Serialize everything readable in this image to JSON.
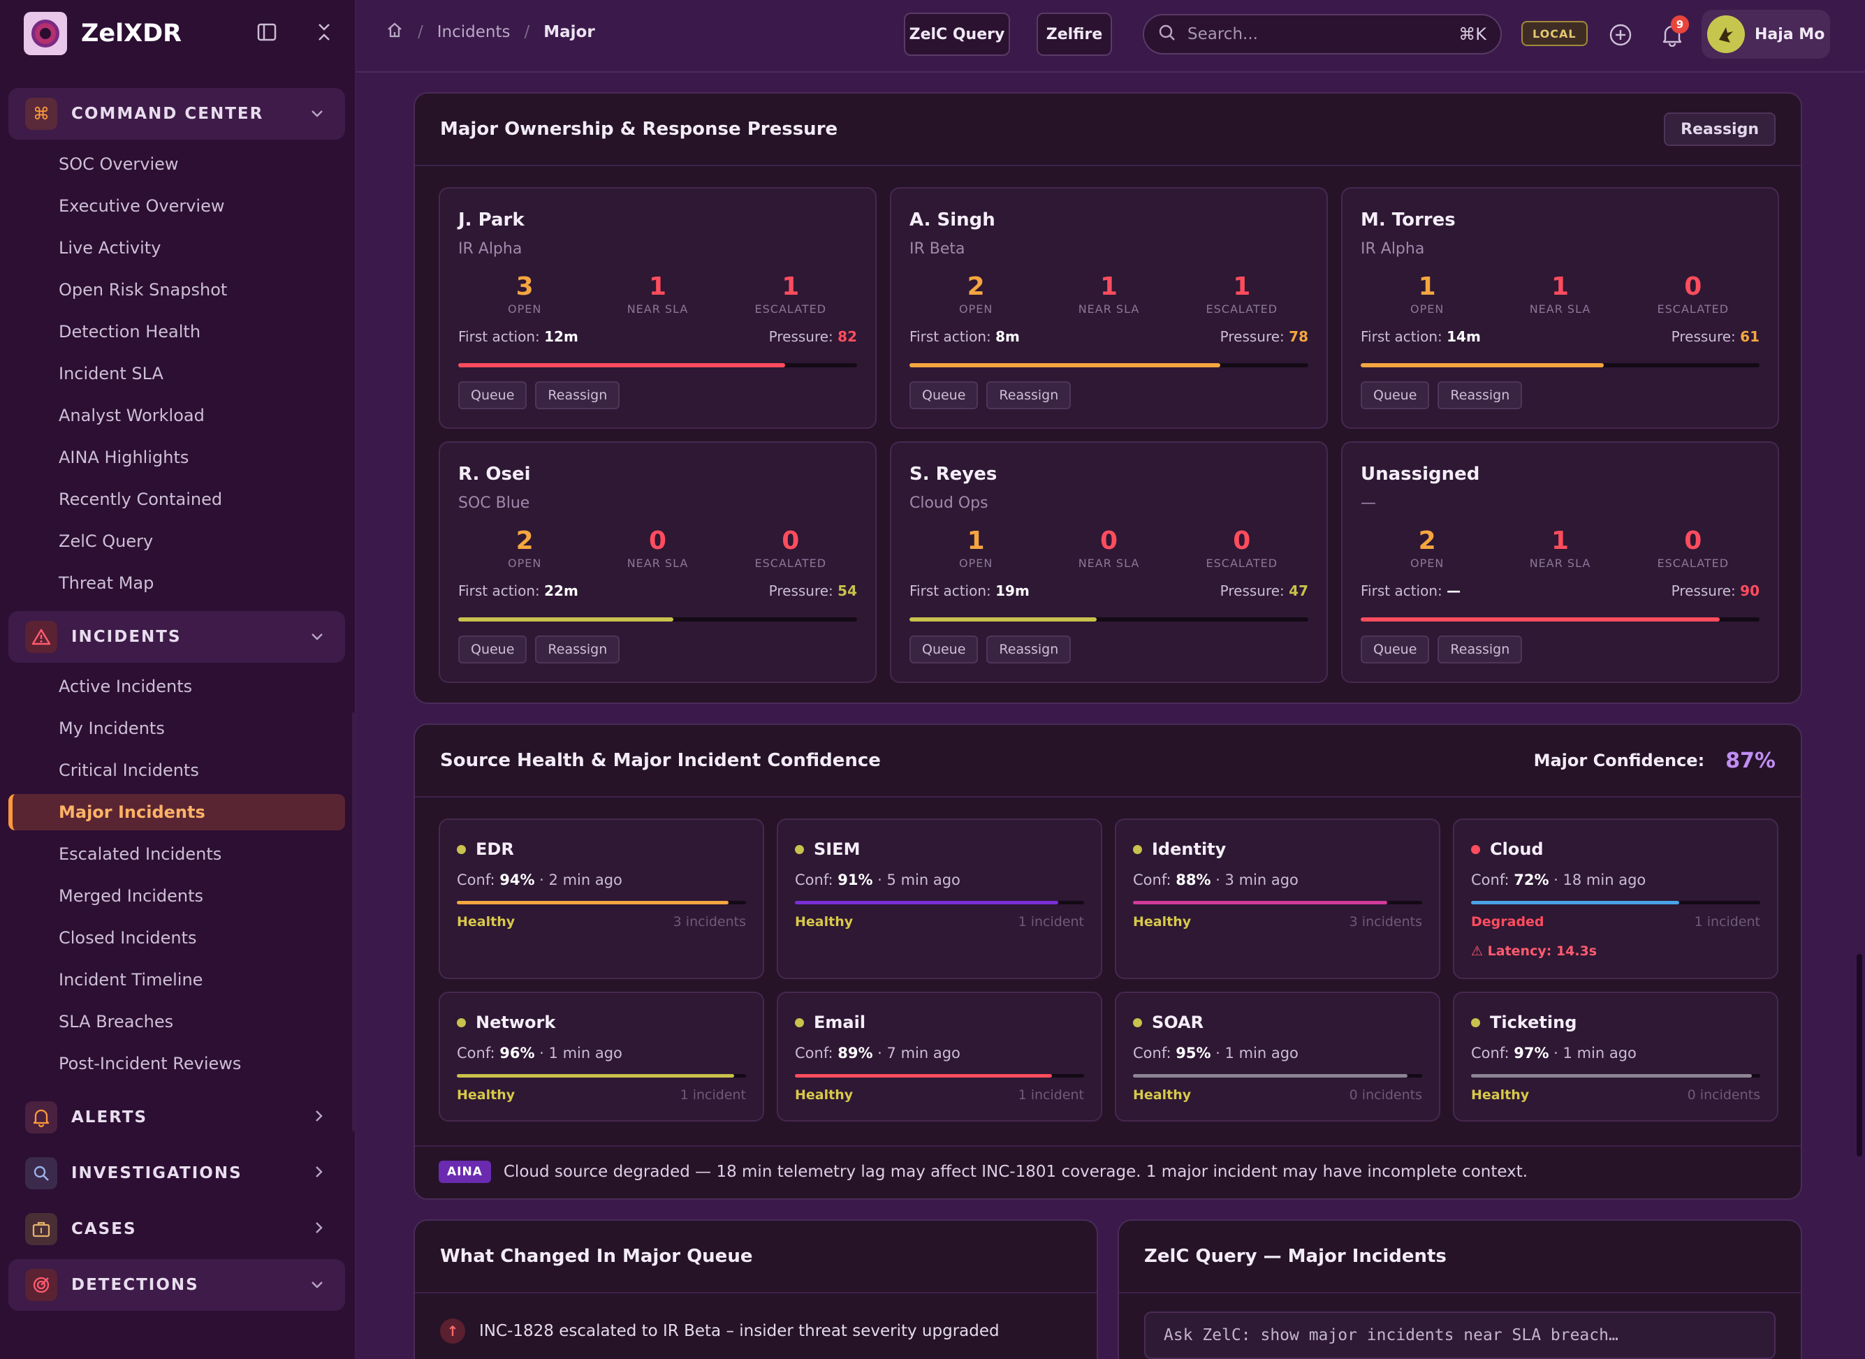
{
  "brand": {
    "name": "ZelXDR"
  },
  "colors": {
    "orange": "#ff9a3c",
    "red": "#ff4d5e",
    "amber": "#f5a640",
    "yellow": "#c9c24c",
    "purple": "#7b2fd6",
    "magenta": "#d23a9a",
    "blue": "#4aa3e6",
    "gray": "#8e8594"
  },
  "sidebar": {
    "sections": [
      {
        "label": "COMMAND CENTER",
        "icon": "command-icon",
        "open": true,
        "items": [
          "SOC Overview",
          "Executive Overview",
          "Live Activity",
          "Open Risk Snapshot",
          "Detection Health",
          "Incident SLA",
          "Analyst Workload",
          "AINA Highlights",
          "Recently Contained",
          "ZelC Query",
          "Threat Map"
        ]
      },
      {
        "label": "INCIDENTS",
        "icon": "warning-icon",
        "open": true,
        "items": [
          "Active Incidents",
          "My Incidents",
          "Critical Incidents",
          "Major Incidents",
          "Escalated Incidents",
          "Merged Incidents",
          "Closed Incidents",
          "Incident Timeline",
          "SLA Breaches",
          "Post-Incident Reviews"
        ]
      },
      {
        "label": "ALERTS",
        "icon": "bell-icon",
        "open": false
      },
      {
        "label": "INVESTIGATIONS",
        "icon": "magnifier-icon",
        "open": false
      },
      {
        "label": "CASES",
        "icon": "briefcase-icon",
        "open": false
      },
      {
        "label": "DETECTIONS",
        "icon": "target-icon",
        "open": true
      }
    ],
    "active_item": "Major Incidents"
  },
  "topbar": {
    "breadcrumb": [
      "Incidents",
      "Major"
    ],
    "zelc_query_label": "ZelC Query",
    "zelfire_label": "Zelfire",
    "search_placeholder": "Search...",
    "search_shortcut": "⌘K",
    "env_badge": "LOCAL",
    "notification_count": "9",
    "user_name": "Haja Mo"
  },
  "ownership": {
    "title": "Major Ownership & Response Pressure",
    "reassign_label": "Reassign",
    "stat_labels": {
      "open": "OPEN",
      "near_sla": "NEAR SLA",
      "escalated": "ESCALATED"
    },
    "first_action_label": "First action:",
    "pressure_label": "Pressure:",
    "queue_label": "Queue",
    "card_reassign_label": "Reassign",
    "owners": [
      {
        "name": "J. Park",
        "team": "IR Alpha",
        "open": "3",
        "near_sla": "1",
        "escalated": "1",
        "first_action": "12m",
        "pressure": "82",
        "pressure_value": 82,
        "bar_color": "#ff4d5e",
        "pressure_color": "#ff4d5e"
      },
      {
        "name": "A. Singh",
        "team": "IR Beta",
        "open": "2",
        "near_sla": "1",
        "escalated": "1",
        "first_action": "8m",
        "pressure": "78",
        "pressure_value": 78,
        "bar_color": "#f5a640",
        "pressure_color": "#f5a640"
      },
      {
        "name": "M. Torres",
        "team": "IR Alpha",
        "open": "1",
        "near_sla": "1",
        "escalated": "0",
        "first_action": "14m",
        "pressure": "61",
        "pressure_value": 61,
        "bar_color": "#f5a640",
        "pressure_color": "#f5a640"
      },
      {
        "name": "R. Osei",
        "team": "SOC Blue",
        "open": "2",
        "near_sla": "0",
        "escalated": "0",
        "first_action": "22m",
        "pressure": "54",
        "pressure_value": 54,
        "bar_color": "#c9c24c",
        "pressure_color": "#c9c24c"
      },
      {
        "name": "S. Reyes",
        "team": "Cloud Ops",
        "open": "1",
        "near_sla": "0",
        "escalated": "0",
        "first_action": "19m",
        "pressure": "47",
        "pressure_value": 47,
        "bar_color": "#c9c24c",
        "pressure_color": "#c9c24c"
      },
      {
        "name": "Unassigned",
        "team": "—",
        "open": "2",
        "near_sla": "1",
        "escalated": "0",
        "first_action": "—",
        "pressure": "90",
        "pressure_value": 90,
        "bar_color": "#ff4d5e",
        "pressure_color": "#ff4d5e"
      }
    ]
  },
  "source_health": {
    "title": "Source Health & Major Incident Confidence",
    "confidence_label": "Major Confidence:",
    "confidence_value": "87%",
    "conf_prefix": "Conf:",
    "sources": [
      {
        "name": "EDR",
        "conf": "94%",
        "ago": "2 min ago",
        "conf_value": 94,
        "status": "Healthy",
        "count": "3 incidents",
        "dot": "#c9c24c",
        "bar": "#f5a640",
        "status_color": "#d8c94a",
        "latency": ""
      },
      {
        "name": "SIEM",
        "conf": "91%",
        "ago": "5 min ago",
        "conf_value": 91,
        "status": "Healthy",
        "count": "1 incident",
        "dot": "#c9c24c",
        "bar": "#7b2fd6",
        "status_color": "#d8c94a",
        "latency": ""
      },
      {
        "name": "Identity",
        "conf": "88%",
        "ago": "3 min ago",
        "conf_value": 88,
        "status": "Healthy",
        "count": "3 incidents",
        "dot": "#c9c24c",
        "bar": "#d23a9a",
        "status_color": "#d8c94a",
        "latency": ""
      },
      {
        "name": "Cloud",
        "conf": "72%",
        "ago": "18 min ago",
        "conf_value": 72,
        "status": "Degraded",
        "count": "1 incident",
        "dot": "#ff4d5e",
        "bar": "#4aa3e6",
        "status_color": "#ff4d5e",
        "latency": "⚠ Latency: 14.3s"
      },
      {
        "name": "Network",
        "conf": "96%",
        "ago": "1 min ago",
        "conf_value": 96,
        "status": "Healthy",
        "count": "1 incident",
        "dot": "#c9c24c",
        "bar": "#c9c24c",
        "status_color": "#d8c94a",
        "latency": ""
      },
      {
        "name": "Email",
        "conf": "89%",
        "ago": "7 min ago",
        "conf_value": 89,
        "status": "Healthy",
        "count": "1 incident",
        "dot": "#c9c24c",
        "bar": "#ff4d5e",
        "status_color": "#d8c94a",
        "latency": ""
      },
      {
        "name": "SOAR",
        "conf": "95%",
        "ago": "1 min ago",
        "conf_value": 95,
        "status": "Healthy",
        "count": "0 incidents",
        "dot": "#c9c24c",
        "bar": "#8e8594",
        "status_color": "#d8c94a",
        "latency": ""
      },
      {
        "name": "Ticketing",
        "conf": "97%",
        "ago": "1 min ago",
        "conf_value": 97,
        "status": "Healthy",
        "count": "0 incidents",
        "dot": "#c9c24c",
        "bar": "#8e8594",
        "status_color": "#d8c94a",
        "latency": ""
      }
    ],
    "aina_tag": "AINA",
    "aina_message": "Cloud source degraded — 18 min telemetry lag may affect INC-1801 coverage. 1 major incident may have incomplete context."
  },
  "what_changed": {
    "title": "What Changed In Major Queue",
    "items": [
      "INC-1828 escalated to IR Beta – insider threat severity upgraded"
    ]
  },
  "zelc_panel": {
    "title": "ZelC Query — Major Incidents",
    "input_placeholder": "Ask ZelC: show major incidents near SLA breach…"
  }
}
